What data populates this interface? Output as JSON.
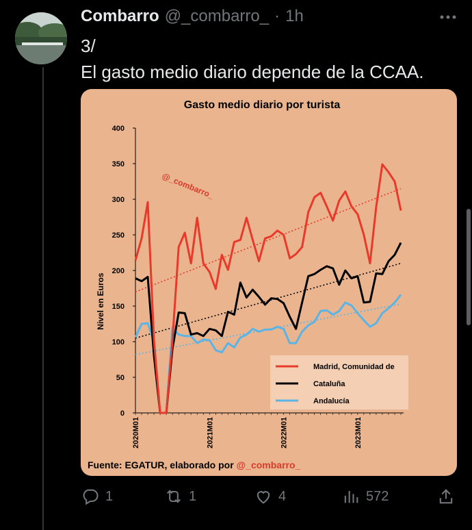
{
  "tweet": {
    "author_name": "Combarro",
    "author_handle": "@_combarro_",
    "separator": "·",
    "time": "1h",
    "line1": "3/",
    "line2": "El gasto medio diario depende de la CCAA."
  },
  "colors": {
    "madrid": "#e8392a",
    "cataluna": "#000000",
    "andalucia": "#5ab4e5",
    "card_bg": "#eab48f",
    "muted": "#71767b"
  },
  "icons": {
    "more": "more-icon",
    "reply": "reply-icon",
    "retweet": "retweet-icon",
    "like": "like-icon",
    "views": "views-icon",
    "share": "share-icon"
  },
  "actions": {
    "replies": "1",
    "retweets": "1",
    "likes": "4",
    "views": "572"
  },
  "chart": {
    "watermark": "@_combarro_",
    "source_prefix": "Fuente: EGATUR, elaborado por ",
    "source_handle": "@_combarro_"
  },
  "chart_data": {
    "type": "line",
    "title": "Gasto medio diario por turista",
    "ylabel": "Nivel en Euros",
    "xlabel": "",
    "ylim": [
      0,
      400
    ],
    "yticks": [
      0,
      50,
      100,
      150,
      200,
      250,
      300,
      350,
      400
    ],
    "xticks": [
      "2020M01",
      "2021M01",
      "2022M01",
      "2023M01"
    ],
    "legend_position": "bottom-right",
    "grid": false,
    "x_start": "2020M01",
    "series": [
      {
        "name": "Madrid, Comunidad de",
        "values": [
          214,
          245,
          296,
          102,
          0,
          0,
          102,
          233,
          253,
          210,
          274,
          210,
          198,
          174,
          222,
          201,
          240,
          243,
          274,
          243,
          213,
          245,
          248,
          256,
          250,
          217,
          223,
          233,
          282,
          303,
          309,
          290,
          270,
          298,
          311,
          290,
          279,
          250,
          210,
          289,
          349,
          338,
          325,
          284
        ],
        "trend": [
          170,
          315
        ]
      },
      {
        "name": "Cataluña",
        "values": [
          189,
          185,
          191,
          80,
          0,
          0,
          90,
          141,
          140,
          110,
          112,
          108,
          118,
          116,
          108,
          142,
          138,
          183,
          162,
          173,
          163,
          152,
          161,
          160,
          154,
          135,
          118,
          155,
          192,
          195,
          201,
          206,
          203,
          180,
          200,
          189,
          192,
          155,
          156,
          196,
          195,
          213,
          222,
          239
        ],
        "trend": [
          105,
          210
        ]
      },
      {
        "name": "Andalucía",
        "values": [
          106,
          125,
          126,
          100,
          0,
          0,
          120,
          110,
          108,
          108,
          98,
          103,
          102,
          88,
          85,
          98,
          92,
          106,
          110,
          118,
          114,
          117,
          117,
          121,
          118,
          98,
          98,
          114,
          123,
          128,
          143,
          144,
          138,
          143,
          155,
          151,
          140,
          130,
          121,
          126,
          140,
          147,
          155,
          166
        ],
        "trend": [
          82,
          153
        ]
      }
    ]
  }
}
